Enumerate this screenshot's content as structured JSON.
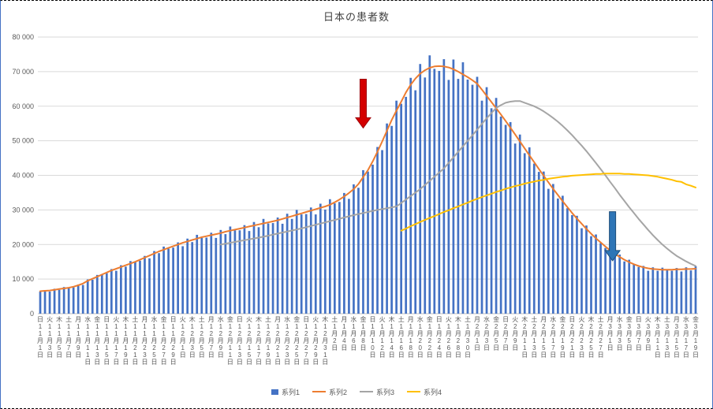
{
  "chart_data": {
    "type": "bar+line",
    "title": "日本の患者数",
    "n_days": 139,
    "x_label_every": 2,
    "grid": true,
    "legend_position": "bottom",
    "y_axis": {
      "min": 0,
      "max": 80000,
      "step": 10000,
      "tick_labels": [
        "0",
        "10 000",
        "20 000",
        "30 000",
        "40 000",
        "50 000",
        "60 000",
        "70 000",
        "80 000"
      ]
    },
    "x_labels": [
      [
        "日",
        "11",
        "1"
      ],
      [
        "火",
        "11",
        "3"
      ],
      [
        "木",
        "11",
        "5"
      ],
      [
        "土",
        "11",
        "7"
      ],
      [
        "月",
        "11",
        "9"
      ],
      [
        "水",
        "11",
        "11"
      ],
      [
        "金",
        "11",
        "13"
      ],
      [
        "日",
        "11",
        "15"
      ],
      [
        "火",
        "11",
        "17"
      ],
      [
        "木",
        "11",
        "19"
      ],
      [
        "土",
        "11",
        "21"
      ],
      [
        "月",
        "11",
        "23"
      ],
      [
        "水",
        "11",
        "25"
      ],
      [
        "金",
        "11",
        "27"
      ],
      [
        "日",
        "11",
        "29"
      ],
      [
        "火",
        "12",
        "1"
      ],
      [
        "木",
        "12",
        "3"
      ],
      [
        "土",
        "12",
        "5"
      ],
      [
        "月",
        "12",
        "7"
      ],
      [
        "水",
        "12",
        "9"
      ],
      [
        "金",
        "12",
        "11"
      ],
      [
        "日",
        "12",
        "13"
      ],
      [
        "火",
        "12",
        "15"
      ],
      [
        "木",
        "12",
        "17"
      ],
      [
        "土",
        "12",
        "19"
      ],
      [
        "月",
        "12",
        "21"
      ],
      [
        "水",
        "12",
        "23"
      ],
      [
        "金",
        "12",
        "25"
      ],
      [
        "日",
        "12",
        "27"
      ],
      [
        "火",
        "12",
        "29"
      ],
      [
        "木",
        "12",
        "31"
      ],
      [
        "土",
        "1",
        "2"
      ],
      [
        "月",
        "1",
        "4"
      ],
      [
        "水",
        "1",
        "6"
      ],
      [
        "金",
        "1",
        "8"
      ],
      [
        "日",
        "1",
        "10"
      ],
      [
        "火",
        "1",
        "12"
      ],
      [
        "木",
        "1",
        "14"
      ],
      [
        "土",
        "1",
        "16"
      ],
      [
        "月",
        "1",
        "18"
      ],
      [
        "水",
        "1",
        "20"
      ],
      [
        "金",
        "1",
        "22"
      ],
      [
        "日",
        "1",
        "24"
      ],
      [
        "火",
        "1",
        "26"
      ],
      [
        "木",
        "1",
        "28"
      ],
      [
        "土",
        "1",
        "30"
      ],
      [
        "月",
        "2",
        "1"
      ],
      [
        "水",
        "2",
        "3"
      ],
      [
        "金",
        "2",
        "5"
      ],
      [
        "日",
        "2",
        "7"
      ],
      [
        "火",
        "2",
        "9"
      ],
      [
        "木",
        "2",
        "11"
      ],
      [
        "土",
        "2",
        "13"
      ],
      [
        "月",
        "2",
        "15"
      ],
      [
        "水",
        "2",
        "17"
      ],
      [
        "金",
        "2",
        "19"
      ],
      [
        "日",
        "2",
        "21"
      ],
      [
        "火",
        "2",
        "23"
      ],
      [
        "木",
        "2",
        "25"
      ],
      [
        "土",
        "2",
        "27"
      ],
      [
        "月",
        "3",
        "1"
      ],
      [
        "水",
        "3",
        "3"
      ],
      [
        "金",
        "3",
        "5"
      ],
      [
        "日",
        "3",
        "7"
      ],
      [
        "火",
        "3",
        "9"
      ],
      [
        "木",
        "3",
        "11"
      ],
      [
        "土",
        "3",
        "13"
      ],
      [
        "月",
        "3",
        "15"
      ],
      [
        "水",
        "3",
        "17"
      ],
      [
        "金",
        "3",
        "19"
      ]
    ],
    "series": [
      {
        "name": "系列1",
        "type": "bar",
        "color": "#4472C4",
        "start_index": 0,
        "values": [
          6400,
          6800,
          6400,
          7200,
          6900,
          7700,
          7400,
          7600,
          8400,
          8300,
          9900,
          9800,
          11200,
          11200,
          11700,
          12900,
          12400,
          14000,
          13600,
          15200,
          14900,
          15300,
          16700,
          16000,
          18100,
          17500,
          19400,
          18800,
          19100,
          20600,
          19500,
          21700,
          20700,
          22800,
          21900,
          22000,
          23400,
          21900,
          24200,
          23000,
          25200,
          24100,
          24100,
          25600,
          23900,
          26500,
          25000,
          27400,
          26100,
          26200,
          27800,
          26000,
          28900,
          27400,
          30000,
          28700,
          28800,
          30700,
          28700,
          31800,
          30100,
          33100,
          31900,
          32300,
          34900,
          33200,
          37400,
          36400,
          41500,
          41100,
          43100,
          48200,
          47300,
          55000,
          54300,
          61600,
          60700,
          62700,
          68200,
          64600,
          72200,
          68300,
          74700,
          70800,
          70200,
          73600,
          67600,
          73500,
          67900,
          72700,
          67700,
          66200,
          68500,
          61600,
          65500,
          59400,
          62400,
          57000,
          54600,
          55400,
          49200,
          51800,
          46400,
          48100,
          43400,
          41000,
          41100,
          36100,
          37500,
          33300,
          34100,
          30500,
          28500,
          28300,
          24700,
          25500,
          22400,
          22900,
          20400,
          19000,
          18800,
          16400,
          17100,
          15100,
          15600,
          14200,
          13500,
          13800,
          12400,
          13400,
          12400,
          13300,
          12600,
          12400,
          13200,
          12200,
          13400,
          12500,
          13700
        ]
      },
      {
        "name": "系列2",
        "type": "line",
        "color": "#ED7D31",
        "start_index": 0,
        "values": [
          6500,
          6600,
          6700,
          6900,
          7100,
          7300,
          7500,
          7800,
          8200,
          8700,
          9500,
          10100,
          10700,
          11300,
          11900,
          12500,
          13000,
          13500,
          14000,
          14500,
          15000,
          15600,
          16200,
          16800,
          17400,
          18000,
          18500,
          19000,
          19500,
          20000,
          20500,
          20900,
          21300,
          21700,
          22100,
          22400,
          22700,
          23000,
          23300,
          23700,
          24000,
          24300,
          24600,
          24900,
          25200,
          25500,
          25800,
          26100,
          26400,
          26700,
          27000,
          27400,
          27800,
          28200,
          28600,
          29000,
          29400,
          29800,
          30200,
          30600,
          31000,
          31500,
          32200,
          33000,
          33900,
          34900,
          36000,
          37500,
          39500,
          41500,
          44000,
          46800,
          49800,
          52900,
          56000,
          58700,
          61300,
          64000,
          66200,
          68000,
          69400,
          70400,
          71100,
          71500,
          71600,
          71500,
          71200,
          70700,
          70000,
          69200,
          68400,
          67500,
          66500,
          64800,
          63000,
          61200,
          59400,
          57600,
          55700,
          53800,
          51800,
          49800,
          47800,
          45800,
          43800,
          41800,
          39900,
          38000,
          36100,
          34300,
          32500,
          30800,
          29100,
          27500,
          26000,
          24500,
          23100,
          21800,
          20600,
          19400,
          18300,
          17300,
          16400,
          15600,
          14900,
          14300,
          13800,
          13400,
          13100,
          12900,
          12800,
          12700,
          12700,
          12700,
          12800,
          12800,
          12900,
          12900,
          13000
        ]
      },
      {
        "name": "系列3",
        "type": "line",
        "color": "#A5A5A5",
        "start_index": 38,
        "values": [
          20000,
          20250,
          20500,
          20750,
          21000,
          21250,
          21500,
          21750,
          22000,
          22250,
          22550,
          22850,
          23150,
          23450,
          23750,
          24050,
          24350,
          24650,
          25000,
          25350,
          25700,
          26050,
          26400,
          26750,
          27100,
          27450,
          27800,
          28150,
          28500,
          28800,
          29100,
          29400,
          29700,
          30000,
          30250,
          30500,
          30750,
          31000,
          32000,
          33000,
          34000,
          35000,
          36000,
          37200,
          38400,
          39600,
          40800,
          42000,
          43600,
          45200,
          46800,
          48400,
          50000,
          51600,
          53200,
          54900,
          56500,
          58000,
          59500,
          60300,
          61000,
          61300,
          61500,
          61500,
          61000,
          60500,
          60000,
          59300,
          58500,
          57600,
          56600,
          55500,
          54300,
          53000,
          51600,
          50100,
          48600,
          47000,
          45300,
          43600,
          41800,
          40000,
          38100,
          36300,
          34400,
          32600,
          30800,
          29100,
          27400,
          25800,
          24200,
          22700,
          21300,
          20000,
          18800,
          17700,
          16700,
          15900,
          15100,
          14400,
          13800
        ]
      },
      {
        "name": "系列4",
        "type": "line",
        "color": "#FFC000",
        "start_index": 76,
        "values": [
          24000,
          24600,
          25300,
          25900,
          26500,
          27100,
          27700,
          28200,
          28800,
          29400,
          29900,
          30500,
          31000,
          31600,
          32100,
          32700,
          33200,
          33700,
          34200,
          34700,
          35200,
          35600,
          36100,
          36500,
          36900,
          37200,
          37600,
          37900,
          38200,
          38500,
          38700,
          39000,
          39200,
          39400,
          39600,
          39700,
          39900,
          40000,
          40100,
          40200,
          40300,
          40400,
          40400,
          40500,
          40500,
          40500,
          40500,
          40400,
          40400,
          40300,
          40200,
          40100,
          40000,
          39800,
          39600,
          39300,
          39000,
          38700,
          38300,
          38100,
          37400,
          37000,
          36500
        ]
      }
    ],
    "annotations": [
      {
        "shape": "block-arrow-down",
        "fill": "#D40000",
        "border": "#9C0006",
        "x_index": 68,
        "value_top": 67800,
        "value_tip": 53700
      },
      {
        "shape": "block-arrow-down",
        "fill": "#2E75B6",
        "border": "#1F4E79",
        "x_index": 120.5,
        "value_top": 29500,
        "value_tip": 15300
      }
    ],
    "colors": {
      "grid": "#D9D9D9",
      "axis": "#BFBFBF",
      "text": "#595959"
    }
  }
}
